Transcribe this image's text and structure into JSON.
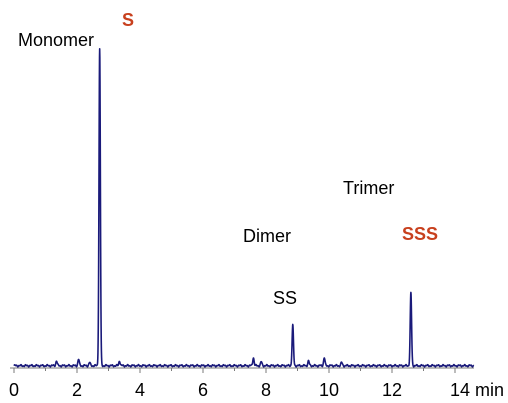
{
  "chart_data": {
    "type": "line",
    "x_unit": "min",
    "xlim": [
      0,
      14.6
    ],
    "ylim": [
      0,
      1
    ],
    "grid": false,
    "x_ticks": [
      {
        "value": 0,
        "label": "0"
      },
      {
        "value": 2,
        "label": "2"
      },
      {
        "value": 4,
        "label": "4"
      },
      {
        "value": 6,
        "label": "6"
      },
      {
        "value": 8,
        "label": "8"
      },
      {
        "value": 10,
        "label": "10"
      },
      {
        "value": 12,
        "label": "12"
      },
      {
        "value": 14,
        "label": "14 min"
      }
    ],
    "minor_ticks": [
      1,
      3,
      5,
      7,
      9,
      11,
      13
    ],
    "line_color": "#1a1a7a",
    "highlight_color": "#c8401e",
    "peaks": [
      {
        "x": 1.35,
        "h": 0.015
      },
      {
        "x": 2.05,
        "h": 0.02
      },
      {
        "x": 2.4,
        "h": 0.01
      },
      {
        "x": 2.72,
        "h": 0.98
      },
      {
        "x": 3.35,
        "h": 0.015
      },
      {
        "x": 7.6,
        "h": 0.025
      },
      {
        "x": 7.85,
        "h": 0.012
      },
      {
        "x": 8.85,
        "h": 0.125
      },
      {
        "x": 9.35,
        "h": 0.015
      },
      {
        "x": 9.85,
        "h": 0.025
      },
      {
        "x": 10.4,
        "h": 0.01
      },
      {
        "x": 12.6,
        "h": 0.225
      }
    ],
    "annotations": {
      "monomer": "Monomer",
      "monomer_code": "S",
      "dimer": "Dimer",
      "dimer_code": "SS",
      "trimer": "Trimer",
      "trimer_code": "SSS"
    }
  }
}
